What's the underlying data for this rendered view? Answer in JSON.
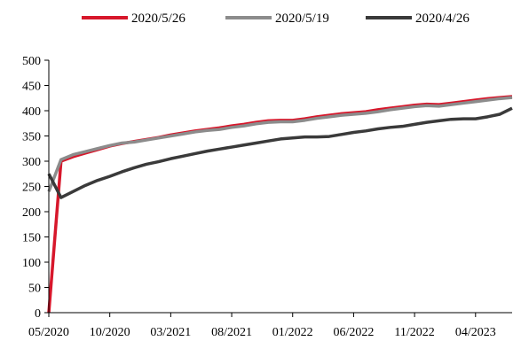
{
  "chart_data": {
    "type": "line",
    "title": "",
    "xlabel": "",
    "ylabel": "",
    "ylim": [
      0,
      500
    ],
    "yticks": [
      0,
      50,
      100,
      150,
      200,
      250,
      300,
      350,
      400,
      450,
      500
    ],
    "xlim": [
      "2020-05",
      "2023-07"
    ],
    "xticks": [
      "05/2020",
      "10/2020",
      "03/2021",
      "08/2021",
      "01/2022",
      "06/2022",
      "11/2022",
      "04/2023"
    ],
    "grid": false,
    "legend_position": "top",
    "x": [
      "2020-05",
      "2020-06",
      "2020-07",
      "2020-08",
      "2020-09",
      "2020-10",
      "2020-11",
      "2020-12",
      "2021-01",
      "2021-02",
      "2021-03",
      "2021-04",
      "2021-05",
      "2021-06",
      "2021-07",
      "2021-08",
      "2021-09",
      "2021-10",
      "2021-11",
      "2021-12",
      "2022-01",
      "2022-02",
      "2022-03",
      "2022-04",
      "2022-05",
      "2022-06",
      "2022-07",
      "2022-08",
      "2022-09",
      "2022-10",
      "2022-11",
      "2022-12",
      "2023-01",
      "2023-02",
      "2023-03",
      "2023-04",
      "2023-05",
      "2023-06",
      "2023-07"
    ],
    "series": [
      {
        "name": "2020/5/26",
        "color": "#d7172b",
        "values": [
          0,
          300,
          309,
          316,
          323,
          330,
          335,
          339,
          343,
          347,
          352,
          356,
          360,
          363,
          366,
          370,
          373,
          377,
          380,
          381,
          381,
          384,
          388,
          391,
          394,
          396,
          398,
          402,
          405,
          408,
          411,
          413,
          412,
          415,
          418,
          421,
          424,
          426,
          428
        ]
      },
      {
        "name": "2020/5/19",
        "color": "#8c8c8c",
        "values": [
          240,
          303,
          313,
          319,
          325,
          331,
          336,
          338,
          342,
          346,
          350,
          354,
          358,
          361,
          363,
          367,
          370,
          374,
          377,
          378,
          378,
          381,
          385,
          388,
          391,
          393,
          395,
          398,
          402,
          405,
          408,
          410,
          409,
          412,
          415,
          418,
          421,
          424,
          426
        ]
      },
      {
        "name": "2020/4/26",
        "color": "#3a3a3a",
        "values": [
          275,
          228,
          240,
          252,
          262,
          270,
          279,
          287,
          294,
          299,
          305,
          310,
          315,
          320,
          324,
          328,
          332,
          336,
          340,
          344,
          346,
          348,
          348,
          349,
          353,
          357,
          360,
          364,
          367,
          369,
          373,
          377,
          380,
          383,
          384,
          384,
          388,
          393,
          405
        ]
      }
    ]
  }
}
